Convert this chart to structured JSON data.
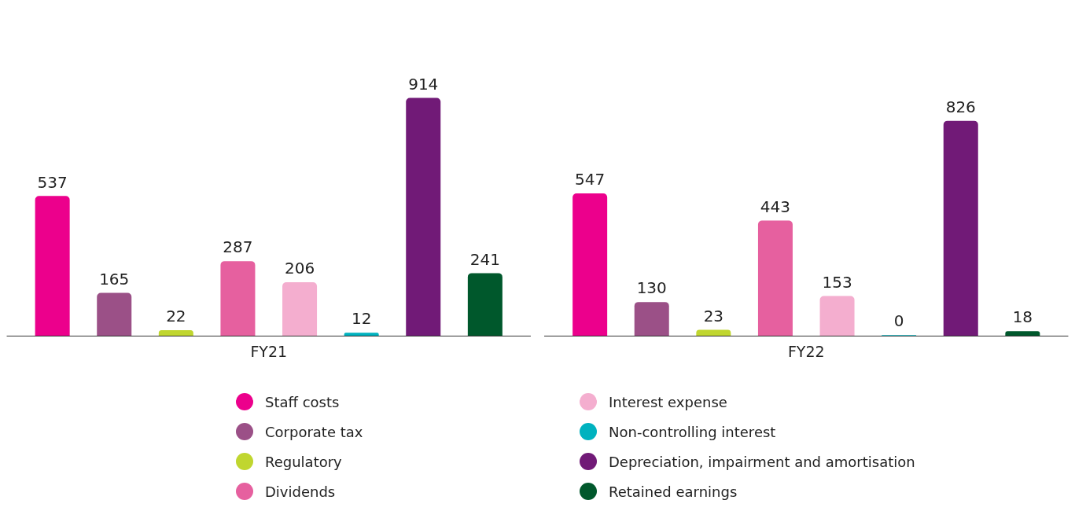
{
  "chart_data": {
    "type": "bar",
    "categories": [
      "FY21",
      "FY22"
    ],
    "series": [
      {
        "name": "Staff costs",
        "color": "#ec008c",
        "values": [
          537,
          547
        ]
      },
      {
        "name": "Corporate tax",
        "color": "#9b5087",
        "values": [
          165,
          130
        ]
      },
      {
        "name": "Regulatory",
        "color": "#c0d62f",
        "values": [
          22,
          23
        ]
      },
      {
        "name": "Dividends",
        "color": "#e6609f",
        "values": [
          287,
          443
        ]
      },
      {
        "name": "Interest expense",
        "color": "#f4aecf",
        "values": [
          206,
          153
        ]
      },
      {
        "name": "Non-controlling interest",
        "color": "#00b2bf",
        "values": [
          12,
          0
        ]
      },
      {
        "name": "Depreciation, impairment and amortisation",
        "color": "#711a77",
        "values": [
          914,
          826
        ]
      },
      {
        "name": "Retained earnings",
        "color": "#00582c",
        "values": [
          241,
          18
        ]
      }
    ],
    "data_labels": true,
    "legend": "bottom",
    "grid": false
  }
}
